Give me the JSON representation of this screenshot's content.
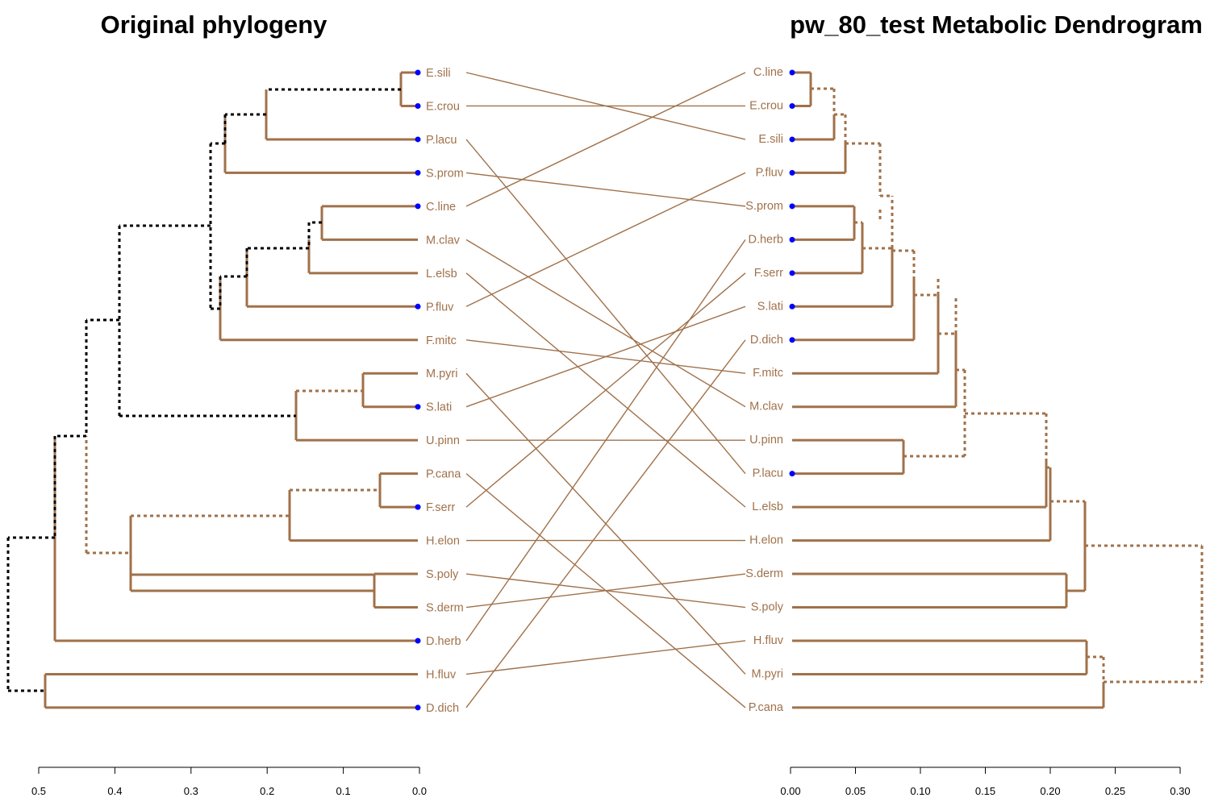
{
  "left_panel": {
    "title": "Original phylogeny",
    "leaves": [
      "E.sili",
      "E.crou",
      "P.lacu",
      "S.prom",
      "C.line",
      "M.clav",
      "L.elsb",
      "P.fluv",
      "F.mitc",
      "M.pyri",
      "S.lati",
      "U.pinn",
      "P.cana",
      "F.serr",
      "H.elon",
      "S.poly",
      "S.derm",
      "D.herb",
      "H.fluv",
      "D.dich"
    ],
    "marked_leaves": [
      "E.sili",
      "E.crou",
      "P.lacu",
      "S.prom",
      "C.line",
      "P.fluv",
      "S.lati",
      "F.serr",
      "D.herb",
      "D.dich"
    ],
    "axis": {
      "ticks": [
        "0.5",
        "0.4",
        "0.3",
        "0.2",
        "0.1",
        "0.0"
      ],
      "reversed": true
    }
  },
  "right_panel": {
    "title": "pw_80_test Metabolic Dendrogram",
    "leaves": [
      "C.line",
      "E.crou",
      "E.sili",
      "P.fluv",
      "S.prom",
      "D.herb",
      "F.serr",
      "S.lati",
      "D.dich",
      "F.mitc",
      "M.clav",
      "U.pinn",
      "P.lacu",
      "L.elsb",
      "H.elon",
      "S.derm",
      "S.poly",
      "H.fluv",
      "M.pyri",
      "P.cana"
    ],
    "marked_leaves": [
      "C.line",
      "E.crou",
      "E.sili",
      "P.fluv",
      "S.prom",
      "D.herb",
      "F.serr",
      "S.lati",
      "D.dich",
      "P.lacu"
    ],
    "axis": {
      "ticks": [
        "0.00",
        "0.05",
        "0.10",
        "0.15",
        "0.20",
        "0.25",
        "0.30"
      ]
    }
  },
  "colors": {
    "branch": "#a0714a",
    "unique_branch": "#000000",
    "connector": "#a0714a",
    "label": "#a0714a",
    "marker": "#0000ff",
    "axis": "#000000"
  }
}
